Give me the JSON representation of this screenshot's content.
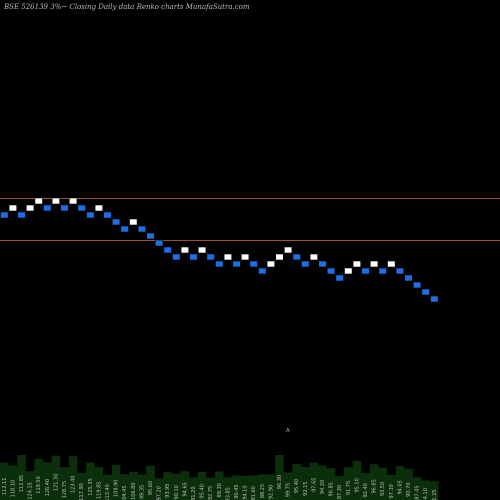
{
  "header": {
    "title": "BSE 526139 3%~  Closing Daily data  Renko  charts MunafaSutra.com"
  },
  "colors": {
    "background": "#000000",
    "up_brick": "#ffffff",
    "down_brick": "#1e6fe6",
    "level_line": "#a0522d",
    "volume_fill": "#0b2f0b",
    "text": "#bbbbbb"
  },
  "chart_data": {
    "type": "renko",
    "title": "BSE 526139 3%~  Closing Daily data  Renko  charts MunafaSutra.com",
    "brick_pct": 3,
    "levels": [
      {
        "value": 2,
        "label": ""
      },
      {
        "value": -4,
        "label": ""
      }
    ],
    "bricks": [
      {
        "level": 0,
        "dir": "down"
      },
      {
        "level": 1,
        "dir": "up"
      },
      {
        "level": 0,
        "dir": "down"
      },
      {
        "level": 1,
        "dir": "up"
      },
      {
        "level": 2,
        "dir": "up"
      },
      {
        "level": 1,
        "dir": "down"
      },
      {
        "level": 2,
        "dir": "up"
      },
      {
        "level": 1,
        "dir": "down"
      },
      {
        "level": 2,
        "dir": "up"
      },
      {
        "level": 1,
        "dir": "down"
      },
      {
        "level": 0,
        "dir": "down"
      },
      {
        "level": 1,
        "dir": "up"
      },
      {
        "level": 0,
        "dir": "down"
      },
      {
        "level": -1,
        "dir": "down"
      },
      {
        "level": -2,
        "dir": "down"
      },
      {
        "level": -1,
        "dir": "up"
      },
      {
        "level": -2,
        "dir": "down"
      },
      {
        "level": -3,
        "dir": "down"
      },
      {
        "level": -4,
        "dir": "down"
      },
      {
        "level": -5,
        "dir": "down"
      },
      {
        "level": -6,
        "dir": "down"
      },
      {
        "level": -5,
        "dir": "up"
      },
      {
        "level": -6,
        "dir": "down"
      },
      {
        "level": -5,
        "dir": "up"
      },
      {
        "level": -6,
        "dir": "down"
      },
      {
        "level": -7,
        "dir": "down"
      },
      {
        "level": -6,
        "dir": "up"
      },
      {
        "level": -7,
        "dir": "down"
      },
      {
        "level": -6,
        "dir": "up"
      },
      {
        "level": -7,
        "dir": "down"
      },
      {
        "level": -8,
        "dir": "down"
      },
      {
        "level": -7,
        "dir": "up"
      },
      {
        "level": -6,
        "dir": "up"
      },
      {
        "level": -5,
        "dir": "up"
      },
      {
        "level": -6,
        "dir": "down"
      },
      {
        "level": -7,
        "dir": "down"
      },
      {
        "level": -6,
        "dir": "up"
      },
      {
        "level": -7,
        "dir": "down"
      },
      {
        "level": -8,
        "dir": "down"
      },
      {
        "level": -9,
        "dir": "down"
      },
      {
        "level": -8,
        "dir": "up"
      },
      {
        "level": -7,
        "dir": "up"
      },
      {
        "level": -8,
        "dir": "down"
      },
      {
        "level": -7,
        "dir": "up"
      },
      {
        "level": -8,
        "dir": "down"
      },
      {
        "level": -7,
        "dir": "up"
      },
      {
        "level": -8,
        "dir": "down"
      },
      {
        "level": -9,
        "dir": "down"
      },
      {
        "level": -10,
        "dir": "down"
      },
      {
        "level": -11,
        "dir": "down"
      },
      {
        "level": -12,
        "dir": "down"
      }
    ],
    "volume_labels": [
      "112.11",
      "118.10",
      "113.85",
      "124.15",
      "119.50",
      "126.40",
      "121.30",
      "128.75",
      "123.40",
      "117.90",
      "125.35",
      "119.85",
      "113.40",
      "109.90",
      "104.45",
      "106.80",
      "99.35",
      "95.60",
      "97.20",
      "93.95",
      "90.10",
      "94.65",
      "91.20",
      "95.40",
      "92.75",
      "89.30",
      "93.85",
      "90.45",
      "94.10",
      "91.60",
      "88.25",
      "92.90",
      "96.30",
      "99.75",
      "95.40",
      "92.15",
      "97.65",
      "94.20",
      "90.85",
      "87.30",
      "91.75",
      "95.10",
      "92.40",
      "96.85",
      "93.50",
      "97.30",
      "94.05",
      "90.70",
      "87.45",
      "84.10",
      "81.25"
    ],
    "volume": [
      0.62,
      0.55,
      0.7,
      0.48,
      0.66,
      0.58,
      0.74,
      0.52,
      0.68,
      0.45,
      0.6,
      0.5,
      0.42,
      0.56,
      0.38,
      0.47,
      0.4,
      0.52,
      0.36,
      0.44,
      0.39,
      0.48,
      0.35,
      0.42,
      0.37,
      0.45,
      0.33,
      0.41,
      0.38,
      0.36,
      0.43,
      0.4,
      0.7,
      0.46,
      0.58,
      0.5,
      0.62,
      0.55,
      0.48,
      0.4,
      0.52,
      0.6,
      0.45,
      0.57,
      0.49,
      0.42,
      0.54,
      0.47,
      0.38,
      0.3,
      0.26
    ],
    "annotations": [
      {
        "brick_index": 33,
        "text": "A"
      }
    ]
  }
}
